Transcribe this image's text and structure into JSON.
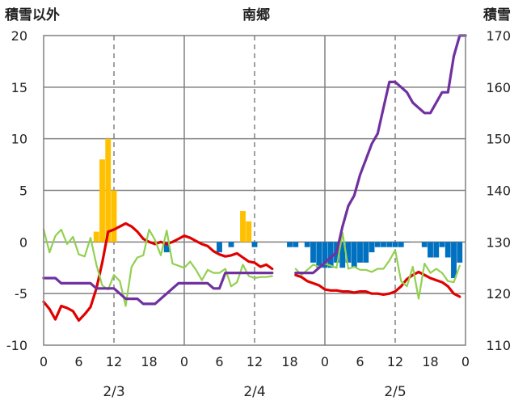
{
  "chart_data": {
    "type": "bar+line",
    "title": "南郷",
    "left_axis_label": "積雪以外",
    "right_axis_label": "積雪",
    "left_ylim": [
      -10,
      20
    ],
    "left_ticks": [
      20,
      15,
      10,
      5,
      0,
      -5,
      -10
    ],
    "right_ylim": [
      110,
      170
    ],
    "right_ticks": [
      170,
      160,
      150,
      140,
      130,
      120,
      110
    ],
    "x_range_hours": [
      0,
      72
    ],
    "x_tick_labels": [
      "0",
      "6",
      "12",
      "18",
      "0",
      "6",
      "12",
      "18",
      "0",
      "6",
      "12",
      "18",
      "0"
    ],
    "dates": [
      "2/3",
      "2/4",
      "2/5"
    ],
    "grid": true,
    "colors": {
      "snowfall_bar": "#FFC000",
      "snow_decrease_bar": "#0070C0",
      "temperature": "#E00000",
      "humidity_line": "#92D050",
      "snow_depth": "#7030A0"
    },
    "series": [
      {
        "key": "snowfall_bar",
        "axis": "left",
        "kind": "bar",
        "x": [
          9,
          10,
          11,
          12,
          34,
          35
        ],
        "values": [
          1,
          8,
          10,
          5,
          3,
          2
        ]
      },
      {
        "key": "snow_decrease_bar",
        "axis": "left",
        "kind": "bar",
        "x": [
          21,
          30,
          32,
          36,
          42,
          43,
          45,
          46,
          47,
          48,
          49,
          50,
          51,
          52,
          53,
          54,
          55,
          56,
          57,
          58,
          59,
          60,
          61,
          62,
          65,
          66,
          67,
          68,
          69,
          70,
          71
        ],
        "values": [
          -1,
          -1,
          -0.5,
          -0.5,
          -0.5,
          -0.5,
          -0.5,
          -2,
          -2.5,
          -2.5,
          -2.5,
          -2,
          -2.5,
          -2,
          -2.5,
          -2,
          -2,
          -1,
          -0.5,
          -0.5,
          -0.5,
          -0.5,
          -0.5,
          0,
          -0.5,
          -1.5,
          -1.5,
          -0.5,
          -1.5,
          -3.5,
          -2
        ]
      },
      {
        "key": "temperature",
        "axis": "left",
        "kind": "line",
        "x": [
          0,
          1,
          2,
          3,
          4,
          5,
          6,
          7,
          8,
          9,
          10,
          11,
          12,
          13,
          14,
          15,
          16,
          17,
          18,
          19,
          20,
          21,
          22,
          23,
          24,
          25,
          26,
          27,
          28,
          29,
          30,
          31,
          32,
          33,
          34,
          35,
          36,
          37,
          38,
          39
        ],
        "values": [
          -5.8,
          -6.5,
          -7.5,
          -6.2,
          -6.4,
          -6.7,
          -7.6,
          -7.0,
          -6.3,
          -4.5,
          -2.0,
          1.0,
          1.2,
          1.5,
          1.8,
          1.5,
          1.0,
          0.3,
          0.0,
          -0.2,
          0.0,
          -0.2,
          0.0,
          0.3,
          0.6,
          0.4,
          0.1,
          -0.2,
          -0.4,
          -0.9,
          -1.2,
          -1.4,
          -1.3,
          -1.1,
          -1.5,
          -1.9,
          -2.0,
          -2.4,
          -2.2,
          -2.6
        ]
      },
      {
        "key": "temperature",
        "axis": "left",
        "kind": "line",
        "x": [
          43,
          44,
          45,
          46,
          47,
          48,
          49,
          50,
          51,
          52,
          53,
          54,
          55,
          56,
          57,
          58,
          59,
          60,
          61,
          62,
          63,
          64,
          65,
          66,
          67,
          68,
          69,
          70,
          71
        ],
        "values": [
          -3.2,
          -3.4,
          -3.8,
          -4.0,
          -4.2,
          -4.6,
          -4.7,
          -4.7,
          -4.8,
          -4.8,
          -4.9,
          -4.8,
          -4.8,
          -5.0,
          -5.0,
          -5.1,
          -5.0,
          -4.8,
          -4.3,
          -3.6,
          -3.2,
          -2.9,
          -3.2,
          -3.5,
          -3.7,
          -3.9,
          -4.3,
          -5.0,
          -5.3
        ]
      },
      {
        "key": "humidity_line",
        "axis": "left",
        "kind": "line",
        "x": [
          0,
          1,
          2,
          3,
          4,
          5,
          6,
          7,
          8,
          9,
          10,
          11,
          12,
          13,
          14,
          15,
          16,
          17,
          18,
          19,
          20,
          21,
          22,
          23,
          24,
          25,
          26,
          27,
          28,
          29,
          30,
          31,
          32,
          33,
          34,
          35,
          36,
          37,
          38,
          39
        ],
        "values": [
          1.2,
          -1.0,
          0.6,
          1.2,
          -0.2,
          0.5,
          -1.2,
          -1.4,
          0.4,
          -2.2,
          -4.2,
          -4.6,
          -3.2,
          -3.8,
          -6.2,
          -2.4,
          -1.5,
          -1.3,
          1.2,
          0.2,
          -1.3,
          1.1,
          -2.1,
          -2.3,
          -2.5,
          -1.9,
          -2.7,
          -3.7,
          -2.7,
          -3.0,
          -3.0,
          -2.6,
          -4.3,
          -3.9,
          -2.2,
          -3.3,
          -3.5,
          -3.4,
          -3.4,
          -3.3
        ]
      },
      {
        "key": "humidity_line",
        "axis": "left",
        "kind": "line",
        "x": [
          43,
          44,
          45,
          46,
          47,
          48,
          49,
          50,
          51,
          52,
          53,
          54,
          55,
          56,
          57,
          58,
          59,
          60,
          61,
          62,
          63,
          64,
          65,
          66,
          67,
          68,
          69,
          70,
          71
        ],
        "values": [
          -2.6,
          -3.2,
          -2.7,
          -2.2,
          -2.4,
          -2.1,
          -2.3,
          -2.5,
          0.9,
          -2.6,
          -2.4,
          -2.7,
          -2.7,
          -2.9,
          -2.6,
          -2.6,
          -1.8,
          -0.8,
          -3.8,
          -4.3,
          -2.4,
          -5.5,
          -2.1,
          -3.0,
          -2.6,
          -3.0,
          -3.8,
          -3.9,
          -2.3
        ]
      },
      {
        "key": "snow_depth",
        "axis": "right",
        "kind": "line",
        "x": [
          0,
          1,
          2,
          3,
          4,
          5,
          6,
          7,
          8,
          9,
          10,
          11,
          12,
          13,
          14,
          15,
          16,
          17,
          18,
          19,
          20,
          21,
          22,
          23,
          24,
          25,
          26,
          27,
          28,
          29,
          30,
          31,
          32,
          33,
          34,
          35,
          36,
          37,
          38,
          39
        ],
        "values": [
          123,
          123,
          123,
          122,
          122,
          122,
          122,
          122,
          122,
          121,
          121,
          121,
          121,
          120,
          119,
          119,
          119,
          118,
          118,
          118,
          119,
          120,
          121,
          122,
          122,
          122,
          122,
          122,
          122,
          121,
          121,
          124,
          124,
          124,
          124,
          124,
          124,
          124,
          124,
          124
        ]
      },
      {
        "key": "snow_depth",
        "axis": "right",
        "kind": "line",
        "x": [
          43,
          44,
          45,
          46,
          47,
          48,
          49,
          50,
          51,
          52,
          53,
          54,
          55,
          56,
          57,
          58,
          59,
          60,
          61,
          62,
          63,
          64,
          65,
          66,
          67,
          68,
          69,
          70,
          71,
          72
        ],
        "values": [
          124,
          124,
          124,
          124,
          125,
          126,
          127,
          128,
          133,
          137,
          139,
          143,
          146,
          149,
          151,
          156,
          161,
          161,
          160,
          159,
          157,
          156,
          155,
          155,
          157,
          159,
          159,
          166,
          170,
          170
        ]
      }
    ]
  }
}
